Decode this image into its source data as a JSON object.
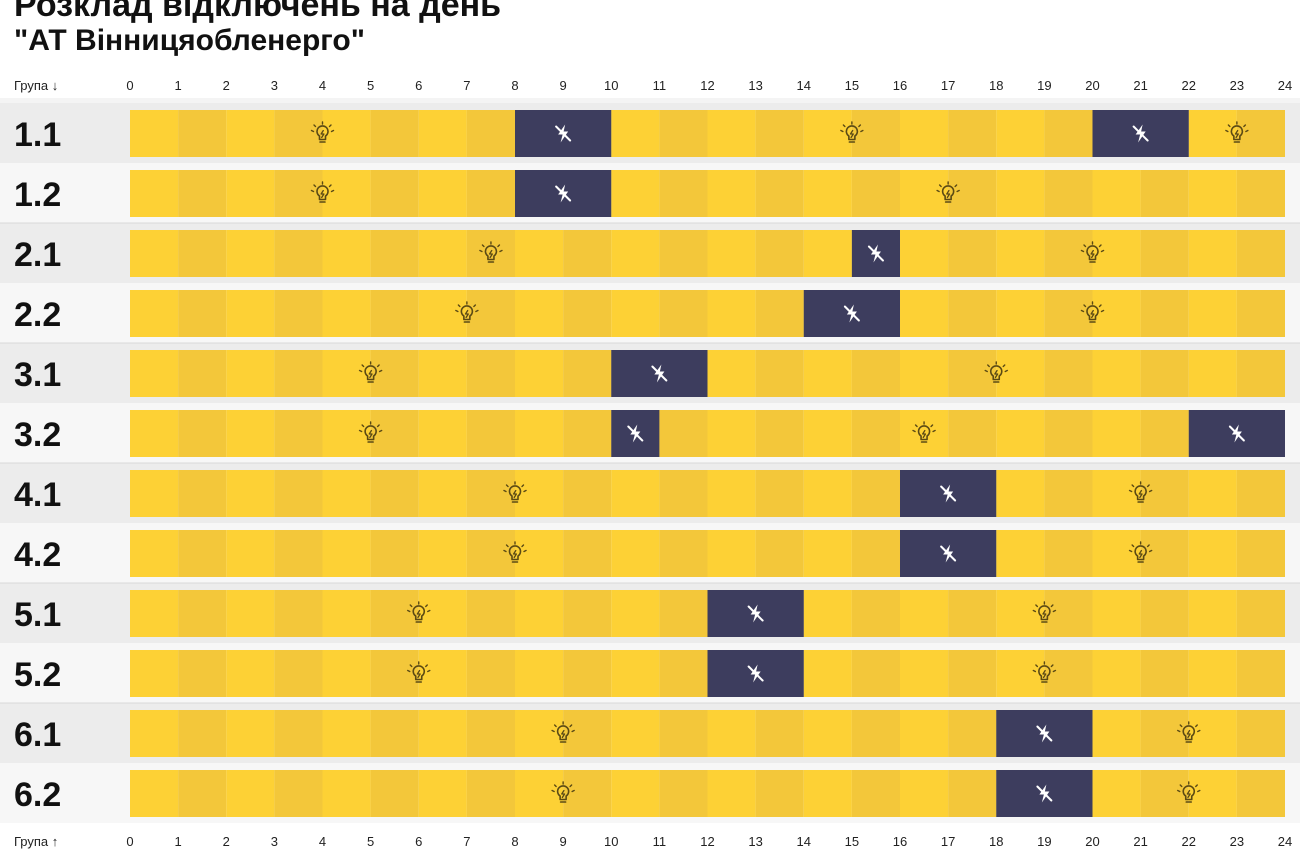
{
  "title_line1": "Розклад відключень на день",
  "title_line2": "\"АТ Вінницяобленерго\"",
  "header_top_label": "Група ↓",
  "header_bottom_label": "Група ↑",
  "colors": {
    "on_light": "#fdd135",
    "on_dark": "#f3c73a",
    "off": "#3d3d5e",
    "row_odd_bg": "#ececec",
    "row_even_bg": "#f7f7f7",
    "icon_on": "#5b4a14",
    "icon_off": "#ffffff"
  },
  "chart_data": {
    "type": "table",
    "x_ticks": [
      0,
      1,
      2,
      3,
      4,
      5,
      6,
      7,
      8,
      9,
      10,
      11,
      12,
      13,
      14,
      15,
      16,
      17,
      18,
      19,
      20,
      21,
      22,
      23,
      24
    ],
    "xlim": [
      0,
      24
    ],
    "groups": [
      {
        "label": "1.1",
        "off": [
          [
            8,
            10
          ],
          [
            20,
            22
          ]
        ]
      },
      {
        "label": "1.2",
        "off": [
          [
            8,
            10
          ]
        ]
      },
      {
        "label": "2.1",
        "off": [
          [
            15,
            16
          ]
        ]
      },
      {
        "label": "2.2",
        "off": [
          [
            14,
            16
          ]
        ]
      },
      {
        "label": "3.1",
        "off": [
          [
            10,
            12
          ]
        ]
      },
      {
        "label": "3.2",
        "off": [
          [
            10,
            11
          ],
          [
            22,
            24
          ]
        ]
      },
      {
        "label": "4.1",
        "off": [
          [
            16,
            18
          ]
        ]
      },
      {
        "label": "4.2",
        "off": [
          [
            16,
            18
          ]
        ]
      },
      {
        "label": "5.1",
        "off": [
          [
            12,
            14
          ]
        ]
      },
      {
        "label": "5.2",
        "off": [
          [
            12,
            14
          ]
        ]
      },
      {
        "label": "6.1",
        "off": [
          [
            18,
            20
          ]
        ]
      },
      {
        "label": "6.2",
        "off": [
          [
            18,
            20
          ]
        ]
      }
    ]
  }
}
